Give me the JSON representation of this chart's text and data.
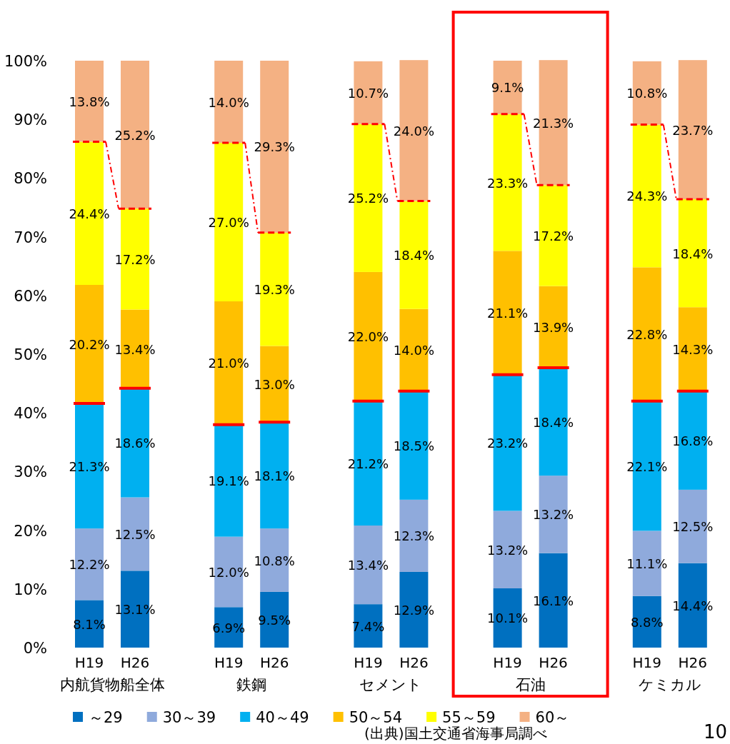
{
  "chart_data": {
    "type": "bar",
    "stacked": true,
    "categories": [
      "H19",
      "H26",
      "H19",
      "H26",
      "H19",
      "H26",
      "H19",
      "H26",
      "H19",
      "H26"
    ],
    "series": [
      {
        "name": "～29",
        "color": "#0070c0",
        "values": [
          8.1,
          13.1,
          6.9,
          9.5,
          7.4,
          12.9,
          10.1,
          16.1,
          8.8,
          14.4
        ],
        "value_labels": [
          "8.1%",
          "13.1%",
          "6.9%",
          "9.5%",
          "7.4%",
          "12.9%",
          "10.1%",
          "16.1%",
          "8.8%",
          "14.4%"
        ]
      },
      {
        "name": "30～39",
        "color": "#8faadc",
        "values": [
          12.2,
          12.5,
          12.0,
          10.8,
          13.4,
          12.3,
          13.2,
          13.2,
          11.1,
          12.5
        ],
        "value_labels": [
          "12.2%",
          "12.5%",
          "12.0%",
          "10.8%",
          "13.4%",
          "12.3%",
          "13.2%",
          "13.2%",
          "11.1%",
          "12.5%"
        ]
      },
      {
        "name": "40～49",
        "color": "#00b0f0",
        "values": [
          21.3,
          18.6,
          19.1,
          18.1,
          21.2,
          18.5,
          23.2,
          18.4,
          22.1,
          16.8
        ],
        "value_labels": [
          "21.3%",
          "18.6%",
          "19.1%",
          "18.1%",
          "21.2%",
          "18.5%",
          "23.2%",
          "18.4%",
          "22.1%",
          "16.8%"
        ]
      },
      {
        "name": "50～54",
        "color": "#ffc000",
        "values": [
          20.2,
          13.4,
          21.0,
          13.0,
          22.0,
          14.0,
          21.1,
          13.9,
          22.8,
          14.3
        ],
        "value_labels": [
          "20.2%",
          "13.4%",
          "21.0%",
          "13.0%",
          "22.0%",
          "14.0%",
          "21.1%",
          "13.9%",
          "22.8%",
          "14.3%"
        ]
      },
      {
        "name": "55～59",
        "color": "#ffff00",
        "values": [
          24.4,
          17.2,
          27.0,
          19.3,
          25.2,
          18.4,
          23.3,
          17.2,
          24.3,
          18.4
        ],
        "value_labels": [
          "24.4%",
          "17.2%",
          "27.0%",
          "19.3%",
          "25.2%",
          "18.4%",
          "23.3%",
          "17.2%",
          "24.3%",
          "18.4%"
        ]
      },
      {
        "name": "60～",
        "color": "#f4b183",
        "values": [
          13.8,
          25.2,
          14.0,
          29.3,
          10.7,
          24.0,
          9.1,
          21.3,
          10.8,
          23.7
        ],
        "value_labels": [
          "13.8%",
          "25.2%",
          "14.0%",
          "29.3%",
          "10.7%",
          "24.0%",
          "9.1%",
          "21.3%",
          "10.8%",
          "23.7%"
        ]
      }
    ],
    "ylim": [
      0,
      100
    ],
    "yticks": [
      {
        "value": 0,
        "label": "0%"
      },
      {
        "value": 10,
        "label": "10%"
      },
      {
        "value": 20,
        "label": "20%"
      },
      {
        "value": 30,
        "label": "30%"
      },
      {
        "value": 40,
        "label": "40%"
      },
      {
        "value": 50,
        "label": "50%"
      },
      {
        "value": 60,
        "label": "60%"
      },
      {
        "value": 70,
        "label": "70%"
      },
      {
        "value": 80,
        "label": "80%"
      },
      {
        "value": 90,
        "label": "90%"
      },
      {
        "value": 100,
        "label": "100%"
      }
    ],
    "legend": "bottom",
    "annotations": [
      "内航貨物船全体",
      "鉄鋼",
      "セメント",
      "石油",
      "ケミカル",
      "(出典)国土交通省海事局調べ",
      "10"
    ]
  }
}
